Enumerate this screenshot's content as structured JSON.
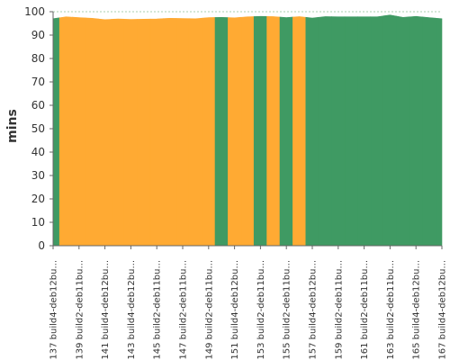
{
  "chart_data": {
    "type": "area",
    "title": "",
    "xlabel": "",
    "ylabel": "mins",
    "ylim": [
      0,
      100
    ],
    "y_ticks": [
      0,
      10,
      20,
      30,
      40,
      50,
      60,
      70,
      80,
      90,
      100
    ],
    "grid": true,
    "legend": "none",
    "colors": {
      "success": "#3f9a63",
      "unstable": "#ffaa33",
      "axis": "#666666",
      "grid": "#2e8b3e"
    },
    "x_tick_labels": [
      "#137 build4-deb12bu...",
      "#139 build2-deb11bu...",
      "#141 build4-deb12bu...",
      "#143 build4-deb12bu...",
      "#145 build2-deb11bu...",
      "#147 build2-deb11bu...",
      "#149 build2-deb11bu...",
      "#151 build4-deb12bu...",
      "#153 build2-deb11bu...",
      "#155 build2-deb11bu...",
      "#157 build4-deb12bu...",
      "#159 build2-deb11bu...",
      "#161 build2-deb11bu...",
      "#163 build2-deb11bu...",
      "#165 build4-deb12bu...",
      "#167 build4-deb12bu..."
    ],
    "builds": [
      {
        "build": 137,
        "mins": 97.0,
        "status": "success"
      },
      {
        "build": 138,
        "mins": 97.8,
        "status": "unstable"
      },
      {
        "build": 139,
        "mins": 97.5,
        "status": "unstable"
      },
      {
        "build": 140,
        "mins": 97.2,
        "status": "unstable"
      },
      {
        "build": 141,
        "mins": 96.6,
        "status": "unstable"
      },
      {
        "build": 142,
        "mins": 96.9,
        "status": "unstable"
      },
      {
        "build": 143,
        "mins": 96.7,
        "status": "unstable"
      },
      {
        "build": 144,
        "mins": 96.8,
        "status": "unstable"
      },
      {
        "build": 145,
        "mins": 96.9,
        "status": "unstable"
      },
      {
        "build": 146,
        "mins": 97.2,
        "status": "unstable"
      },
      {
        "build": 147,
        "mins": 97.1,
        "status": "unstable"
      },
      {
        "build": 148,
        "mins": 97.0,
        "status": "unstable"
      },
      {
        "build": 149,
        "mins": 97.5,
        "status": "unstable"
      },
      {
        "build": 150,
        "mins": 97.6,
        "status": "success"
      },
      {
        "build": 151,
        "mins": 97.4,
        "status": "unstable"
      },
      {
        "build": 152,
        "mins": 97.8,
        "status": "unstable"
      },
      {
        "build": 153,
        "mins": 98.0,
        "status": "success"
      },
      {
        "build": 154,
        "mins": 97.9,
        "status": "unstable"
      },
      {
        "build": 155,
        "mins": 97.5,
        "status": "success"
      },
      {
        "build": 156,
        "mins": 97.9,
        "status": "unstable"
      },
      {
        "build": 157,
        "mins": 97.3,
        "status": "success"
      },
      {
        "build": 158,
        "mins": 97.9,
        "status": "success"
      },
      {
        "build": 159,
        "mins": 97.8,
        "status": "success"
      },
      {
        "build": 160,
        "mins": 97.8,
        "status": "success"
      },
      {
        "build": 161,
        "mins": 97.8,
        "status": "success"
      },
      {
        "build": 162,
        "mins": 97.8,
        "status": "success"
      },
      {
        "build": 163,
        "mins": 98.6,
        "status": "success"
      },
      {
        "build": 164,
        "mins": 97.6,
        "status": "success"
      },
      {
        "build": 165,
        "mins": 98.0,
        "status": "success"
      },
      {
        "build": 166,
        "mins": 97.5,
        "status": "success"
      },
      {
        "build": 167,
        "mins": 97.0,
        "status": "success"
      }
    ]
  }
}
